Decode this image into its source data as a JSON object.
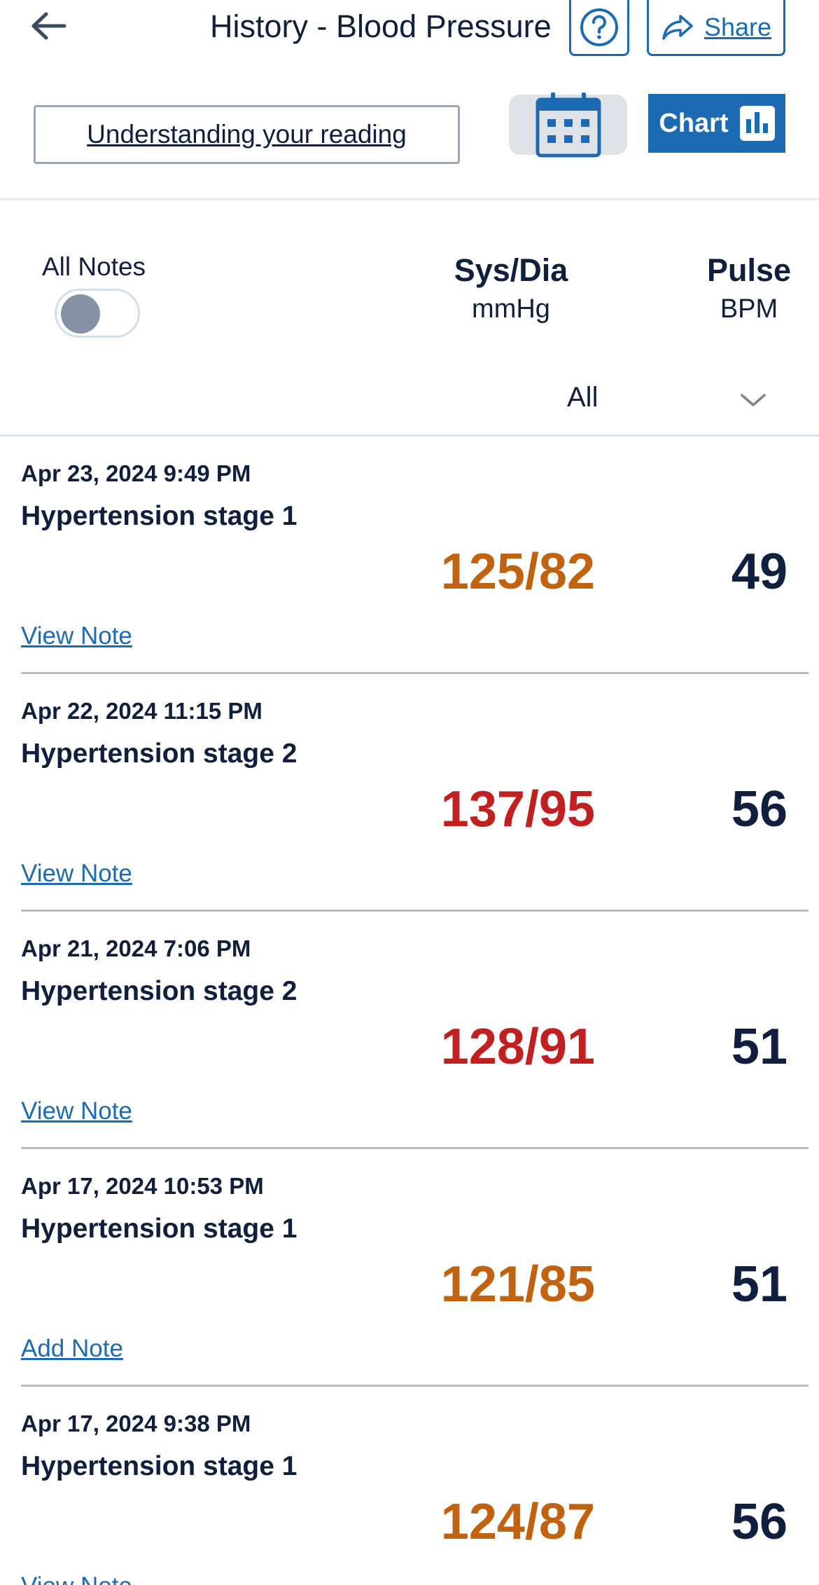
{
  "header": {
    "title": "History - Blood Pressure",
    "share_label": "Share",
    "understanding_label": "Understanding your reading",
    "chart_label": "Chart"
  },
  "columns": {
    "all_notes_label": "All Notes",
    "all_notes_enabled": false,
    "sysdia_label": "Sys/Dia",
    "sysdia_unit": "mmHg",
    "pulse_label": "Pulse",
    "pulse_unit": "BPM",
    "filter_value": "All"
  },
  "colors": {
    "accent": "#1c6ab2",
    "stage1": "#c0620f",
    "stage2": "#c0201f",
    "text": "#0f1f3d"
  },
  "readings": [
    {
      "date": "Apr 23, 2024 9:49 PM",
      "category": "Hypertension stage 1",
      "sysdia": "125/82",
      "pulse": "49",
      "note_action": "View Note",
      "color": "#c0620f"
    },
    {
      "date": "Apr 22, 2024 11:15 PM",
      "category": "Hypertension stage 2",
      "sysdia": "137/95",
      "pulse": "56",
      "note_action": "View Note",
      "color": "#c0201f"
    },
    {
      "date": "Apr 21, 2024 7:06 PM",
      "category": "Hypertension stage 2",
      "sysdia": "128/91",
      "pulse": "51",
      "note_action": "View Note",
      "color": "#c0201f"
    },
    {
      "date": "Apr 17, 2024 10:53 PM",
      "category": "Hypertension stage 1",
      "sysdia": "121/85",
      "pulse": "51",
      "note_action": "Add Note",
      "color": "#c0620f"
    },
    {
      "date": "Apr 17, 2024 9:38 PM",
      "category": "Hypertension stage 1",
      "sysdia": "124/87",
      "pulse": "56",
      "note_action": "View Note",
      "color": "#c0620f"
    }
  ]
}
